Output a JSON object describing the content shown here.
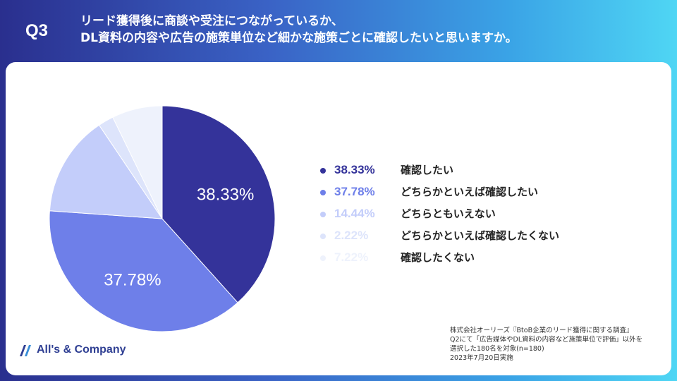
{
  "header": {
    "q_label": "Q3",
    "question_lines": [
      "リード獲得後に商談や受注につながっているか、",
      "DL資料の内容や広告の施策単位など細かな施策ごとに確認したいと思いますか。"
    ]
  },
  "chart_data": {
    "type": "pie",
    "series": [
      {
        "label": "確認したい",
        "value": 38.33,
        "value_label": "38.33%",
        "color": "#34339a"
      },
      {
        "label": "どちらかといえば確認したい",
        "value": 37.78,
        "value_label": "37.78%",
        "color": "#6e7fe9"
      },
      {
        "label": "どちらともいえない",
        "value": 14.44,
        "value_label": "14.44%",
        "color": "#c3cdfa"
      },
      {
        "label": "どちらかといえば確認したくない",
        "value": 2.22,
        "value_label": "2.22%",
        "color": "#dde4fb"
      },
      {
        "label": "確認したくない",
        "value": 7.22,
        "value_label": "7.22%",
        "color": "#eef2fc"
      }
    ],
    "slice_labels_shown": [
      "38.33%",
      "37.78%"
    ]
  },
  "footer": {
    "logo_text": "All's & Company",
    "source_lines": [
      "株式会社オーリーズ『BtoB企業のリード獲得に関する調査』",
      "Q2にて「広告媒体やDL資料の内容など施策単位で評価」以外を",
      "選択した180名を対象(n=180)",
      "2023年7月20日実施"
    ]
  }
}
